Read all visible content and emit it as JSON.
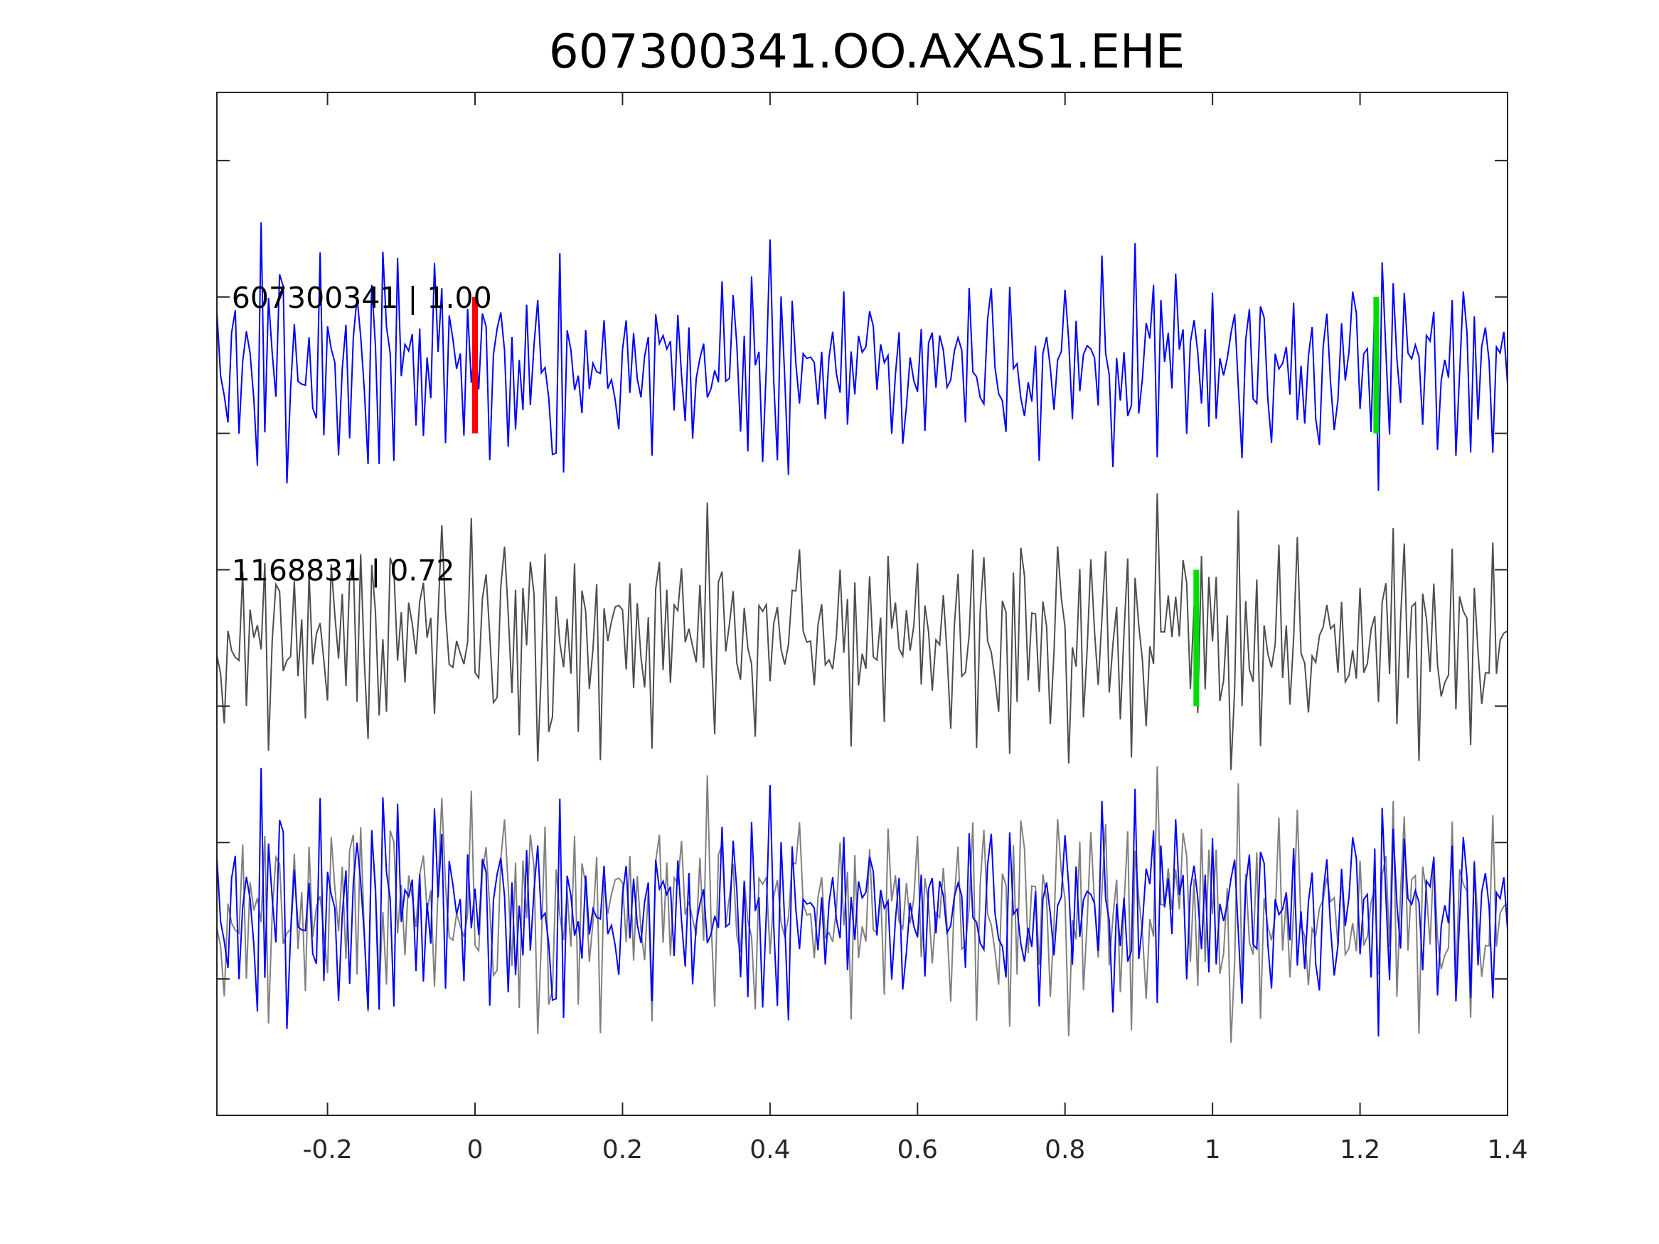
{
  "chart_data": {
    "type": "line",
    "title": "607300341.OO.AXAS1.EHE",
    "xlabel": "",
    "ylabel": "",
    "xlim": [
      -0.35,
      1.4
    ],
    "x_ticks": [
      -0.2,
      0,
      0.2,
      0.4,
      0.6,
      0.8,
      1,
      1.2,
      1.4
    ],
    "x_tick_labels": [
      "-0.2",
      "0",
      "0.2",
      "0.4",
      "0.6",
      "0.8",
      "1",
      "1.2",
      "1.4"
    ],
    "ylim": [
      0,
      7.5
    ],
    "y_tick_labels_shown": false,
    "grid": false,
    "sample_step": 0.005,
    "traces": [
      {
        "label": "607300341 | 1.00",
        "color": "#0000ff",
        "offset": 5.5,
        "markers": [
          {
            "x": 0.0,
            "color": "#ff0000"
          },
          {
            "x": 1.222,
            "color": "#00dd00"
          }
        ]
      },
      {
        "label": "1168831 | 0.72",
        "color": "#4d4d4d",
        "offset": 3.5,
        "markers": [
          {
            "x": 0.978,
            "color": "#00dd00"
          }
        ]
      }
    ],
    "overlay": {
      "offset": 1.5,
      "series": [
        {
          "color": "#0000ff"
        },
        {
          "color": "#808080"
        }
      ]
    }
  }
}
